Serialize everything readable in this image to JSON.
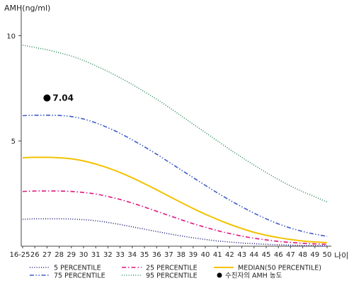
{
  "chart_data": {
    "type": "line",
    "ylabel": "AMH(ng/ml)",
    "xlabel": "나이",
    "ylim": [
      0,
      11
    ],
    "yticks": [
      5,
      10
    ],
    "grid": false,
    "legend_position": "bottom",
    "categories": [
      "16-25",
      "26",
      "27",
      "28",
      "29",
      "30",
      "31",
      "32",
      "33",
      "34",
      "35",
      "36",
      "37",
      "38",
      "39",
      "40",
      "41",
      "42",
      "43",
      "44",
      "45",
      "46",
      "47",
      "48",
      "49",
      "50"
    ],
    "series": [
      {
        "name": "5 PERCENTILE",
        "color": "#1a1a7a",
        "dash": "dotted",
        "values": [
          1.28,
          1.3,
          1.3,
          1.3,
          1.29,
          1.26,
          1.21,
          1.13,
          1.03,
          0.92,
          0.81,
          0.7,
          0.59,
          0.49,
          0.4,
          0.32,
          0.25,
          0.2,
          0.15,
          0.12,
          0.09,
          0.07,
          0.05,
          0.04,
          0.03,
          0.02
        ]
      },
      {
        "name": "25 PERCENTILE",
        "color": "#e0137d",
        "dash": "dashdot",
        "values": [
          2.6,
          2.62,
          2.62,
          2.62,
          2.6,
          2.55,
          2.48,
          2.36,
          2.22,
          2.05,
          1.86,
          1.66,
          1.46,
          1.26,
          1.07,
          0.9,
          0.74,
          0.6,
          0.48,
          0.38,
          0.3,
          0.23,
          0.18,
          0.14,
          0.11,
          0.09
        ]
      },
      {
        "name": "MEDIAN(50 PERCENTILE)",
        "color": "#f2c200",
        "dash": "solid",
        "values": [
          4.2,
          4.22,
          4.22,
          4.2,
          4.15,
          4.05,
          3.9,
          3.72,
          3.5,
          3.25,
          2.97,
          2.68,
          2.38,
          2.08,
          1.79,
          1.52,
          1.27,
          1.04,
          0.84,
          0.66,
          0.52,
          0.41,
          0.32,
          0.25,
          0.2,
          0.17
        ]
      },
      {
        "name": "75 PERCENTILE",
        "color": "#3c5cc8",
        "dash": "dashdotdot",
        "values": [
          6.2,
          6.22,
          6.22,
          6.21,
          6.16,
          6.04,
          5.86,
          5.63,
          5.36,
          5.05,
          4.72,
          4.37,
          4.0,
          3.63,
          3.26,
          2.89,
          2.53,
          2.19,
          1.87,
          1.57,
          1.3,
          1.06,
          0.86,
          0.7,
          0.57,
          0.47
        ]
      },
      {
        "name": "95 PERCENTILE",
        "color": "#2e8b57",
        "dash": "dotted",
        "values": [
          9.55,
          9.44,
          9.33,
          9.19,
          9.03,
          8.82,
          8.57,
          8.3,
          8.0,
          7.68,
          7.34,
          6.98,
          6.6,
          6.2,
          5.8,
          5.4,
          5.0,
          4.6,
          4.22,
          3.85,
          3.5,
          3.17,
          2.86,
          2.59,
          2.35,
          2.1
        ]
      }
    ],
    "markers": [
      {
        "name": "수진자의 AMH 농도",
        "category": "27",
        "value": 7.04,
        "label": "7.04",
        "color": "#000000"
      }
    ]
  }
}
